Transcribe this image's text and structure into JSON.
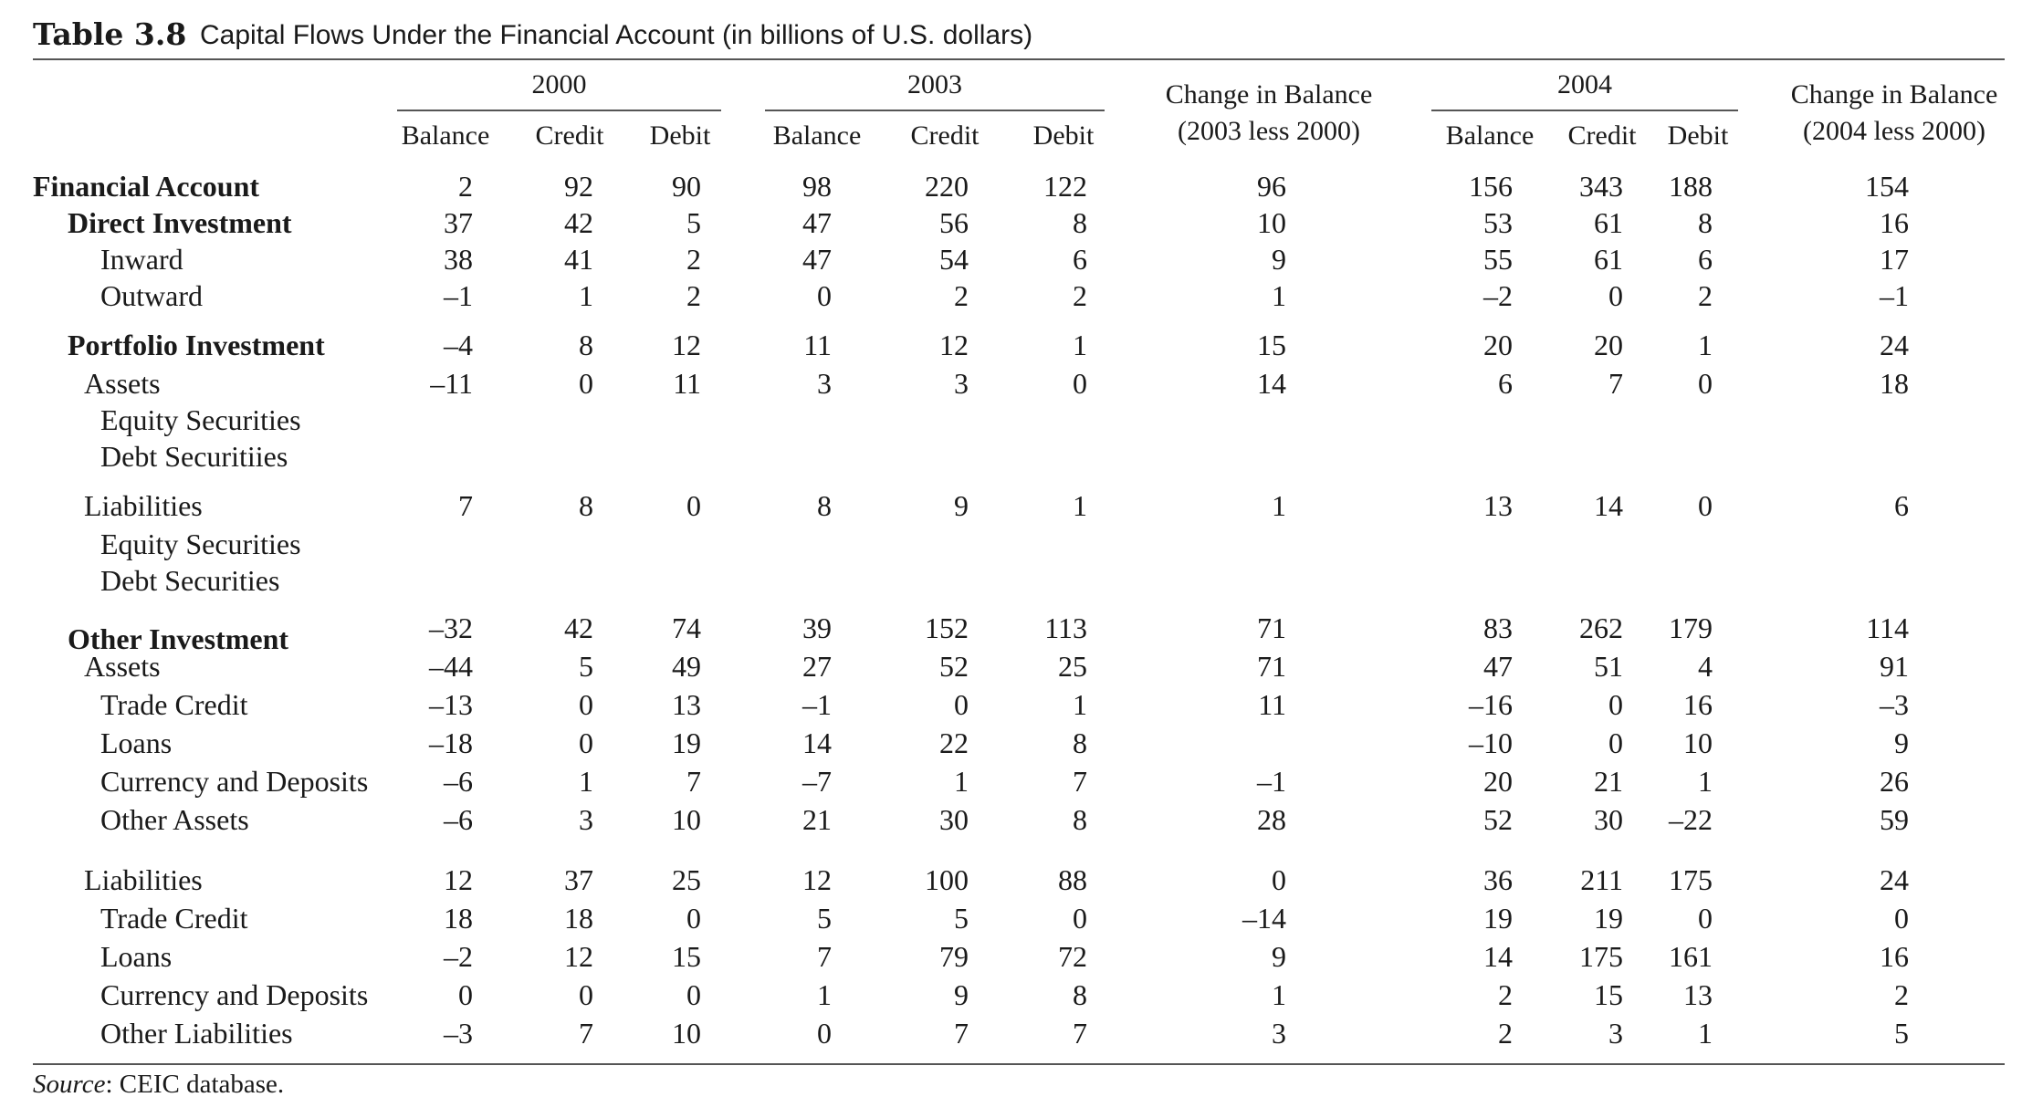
{
  "table_number": "Table 3.8",
  "table_title": "Capital Flows Under the Financial Account (in billions of U.S. dollars)",
  "groups": [
    "2000",
    "2003",
    "2004"
  ],
  "sub_columns": [
    "Balance",
    "Credit",
    "Debit"
  ],
  "change_2003": [
    "Change in Balance",
    "(2003 less 2000)"
  ],
  "change_2004": [
    "Change in Balance",
    "(2004 less 2000)"
  ],
  "source_label": "Source",
  "source_text": ": CEIC database.",
  "rows": [
    {
      "label": "Financial Account",
      "values": [
        "2",
        "92",
        "90",
        "98",
        "220",
        "122",
        "96",
        "156",
        "343",
        "188",
        "154"
      ]
    },
    {
      "label": "Direct Investment",
      "values": [
        "37",
        "42",
        "5",
        "47",
        "56",
        "8",
        "10",
        "53",
        "61",
        "8",
        "16"
      ]
    },
    {
      "label": "Inward",
      "values": [
        "38",
        "41",
        "2",
        "47",
        "54",
        "6",
        "9",
        "55",
        "61",
        "6",
        "17"
      ]
    },
    {
      "label": "Outward",
      "values": [
        "–1",
        "1",
        "2",
        "0",
        "2",
        "2",
        "1",
        "–2",
        "0",
        "2",
        "–1"
      ]
    },
    {
      "label": "Portfolio Investment",
      "values": [
        "–4",
        "8",
        "12",
        "11",
        "12",
        "1",
        "15",
        "20",
        "20",
        "1",
        "24"
      ]
    },
    {
      "label": "Assets",
      "values": [
        "–11",
        "0",
        "11",
        "3",
        "3",
        "0",
        "14",
        "6",
        "7",
        "0",
        "18"
      ]
    },
    {
      "label": "Equity Securities",
      "values": [
        "",
        "",
        "",
        "",
        "",
        "",
        "",
        "",
        "",
        "",
        ""
      ]
    },
    {
      "label": "Debt Securitiies",
      "values": [
        "",
        "",
        "",
        "",
        "",
        "",
        "",
        "",
        "",
        "",
        ""
      ]
    },
    {
      "label": "Liabilities",
      "values": [
        "7",
        "8",
        "0",
        "8",
        "9",
        "1",
        "1",
        "13",
        "14",
        "0",
        "6"
      ]
    },
    {
      "label": "Equity Securities",
      "values": [
        "",
        "",
        "",
        "",
        "",
        "",
        "",
        "",
        "",
        "",
        ""
      ]
    },
    {
      "label": "Debt Securities",
      "values": [
        "",
        "",
        "",
        "",
        "",
        "",
        "",
        "",
        "",
        "",
        ""
      ]
    },
    {
      "label": "Other Investment",
      "values": [
        "–32",
        "42",
        "74",
        "39",
        "152",
        "113",
        "71",
        "83",
        "262",
        "179",
        "114"
      ]
    },
    {
      "label": "Assets",
      "values": [
        "–44",
        "5",
        "49",
        "27",
        "52",
        "25",
        "71",
        "47",
        "51",
        "4",
        "91"
      ]
    },
    {
      "label": "Trade Credit",
      "values": [
        "–13",
        "0",
        "13",
        "–1",
        "0",
        "1",
        "11",
        "–16",
        "0",
        "16",
        "–3"
      ]
    },
    {
      "label": "Loans",
      "values": [
        "–18",
        "0",
        "19",
        "14",
        "22",
        "8",
        "",
        "–10",
        "0",
        "10",
        "9"
      ]
    },
    {
      "label": "Currency and Deposits",
      "values": [
        "–6",
        "1",
        "7",
        "–7",
        "1",
        "7",
        "–1",
        "20",
        "21",
        "1",
        "26"
      ]
    },
    {
      "label": "Other Assets",
      "values": [
        "–6",
        "3",
        "10",
        "21",
        "30",
        "8",
        "28",
        "52",
        "30",
        "–22",
        "59"
      ]
    },
    {
      "label": "Liabilities",
      "values": [
        "12",
        "37",
        "25",
        "12",
        "100",
        "88",
        "0",
        "36",
        "211",
        "175",
        "24"
      ]
    },
    {
      "label": "Trade Credit",
      "values": [
        "18",
        "18",
        "0",
        "5",
        "5",
        "0",
        "–14",
        "19",
        "19",
        "0",
        "0"
      ]
    },
    {
      "label": "Loans",
      "values": [
        "–2",
        "12",
        "15",
        "7",
        "79",
        "72",
        "9",
        "14",
        "175",
        "161",
        "16"
      ]
    },
    {
      "label": "Currency and Deposits",
      "values": [
        "0",
        "0",
        "0",
        "1",
        "9",
        "8",
        "1",
        "2",
        "15",
        "13",
        "2"
      ]
    },
    {
      "label": "Other Liabilities",
      "values": [
        "–3",
        "7",
        "10",
        "0",
        "7",
        "7",
        "3",
        "2",
        "3",
        "1",
        "5"
      ]
    }
  ]
}
